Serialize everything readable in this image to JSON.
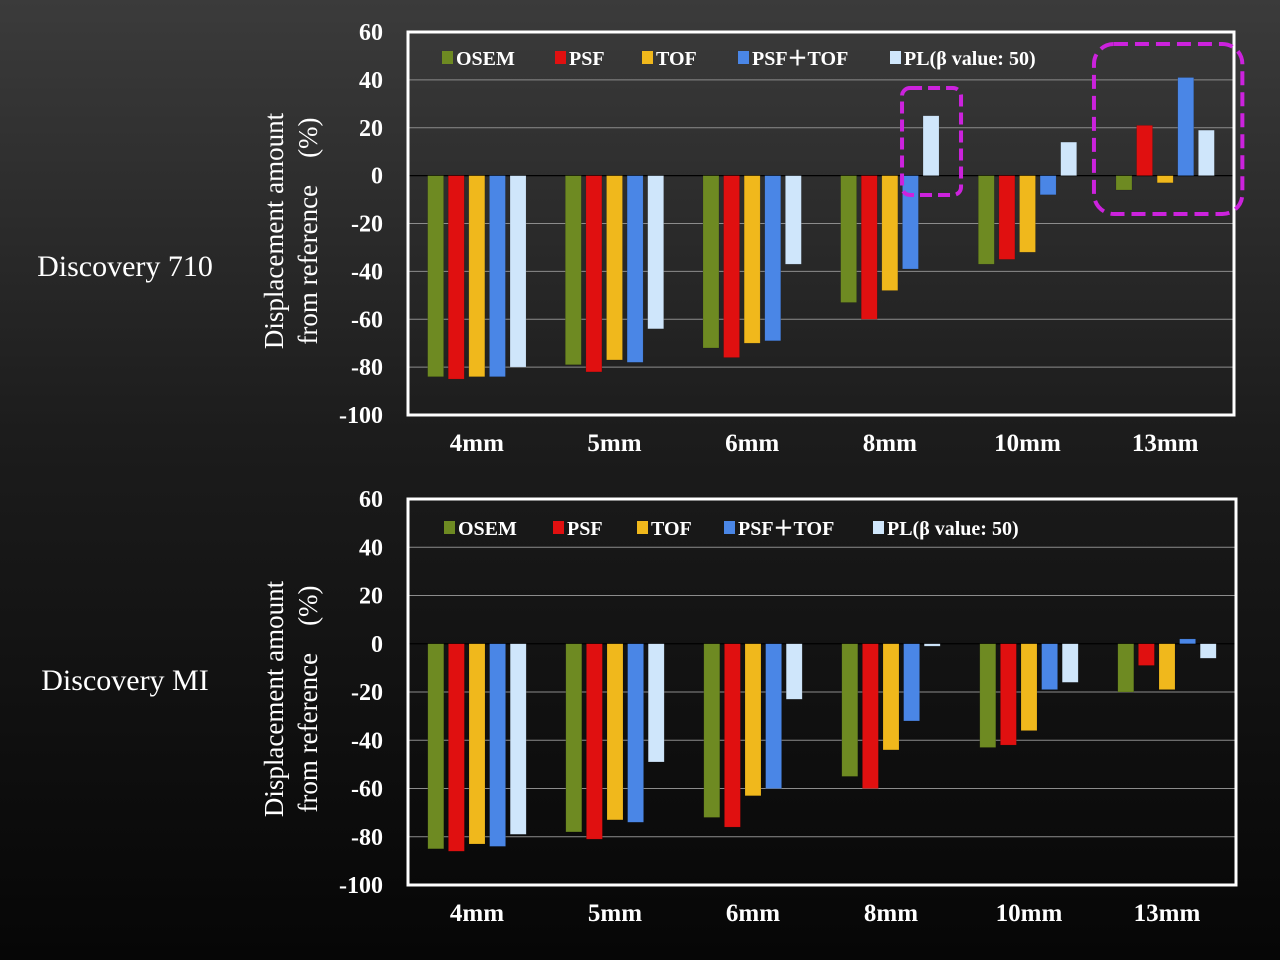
{
  "colors": {
    "OSEM": "#6e8a22",
    "PSF": "#e01010",
    "TOF": "#f0b81c",
    "PSF+TOF": "#4a86e6",
    "PL": "#cfe6fb",
    "highlight": "#cc22dd"
  },
  "chart_data": [
    {
      "type": "bar",
      "device_label": "Discovery 710",
      "ylabel_line1": "Displacement amount",
      "ylabel_line2": "from reference　(%)",
      "xlabel": "",
      "ylim": [
        -100,
        60
      ],
      "yticks": [
        60,
        40,
        20,
        0,
        -20,
        -40,
        -60,
        -80,
        -100
      ],
      "grid": true,
      "legend": "top",
      "categories": [
        "4mm",
        "5mm",
        "6mm",
        "8mm",
        "10mm",
        "13mm"
      ],
      "series": [
        {
          "name": "OSEM",
          "values": [
            -84,
            -79,
            -72,
            -53,
            -37,
            -6
          ]
        },
        {
          "name": "PSF",
          "values": [
            -85,
            -82,
            -76,
            -60,
            -35,
            21
          ]
        },
        {
          "name": "TOF",
          "values": [
            -84,
            -77,
            -70,
            -48,
            -32,
            -3
          ]
        },
        {
          "name": "PSF＋TOF",
          "values": [
            -84,
            -78,
            -69,
            -39,
            -8,
            41
          ]
        },
        {
          "name": "PL(β value: 50)",
          "values": [
            -80,
            -64,
            -37,
            25,
            14,
            19
          ]
        }
      ],
      "highlights": [
        "8mm: PL(β value: 50)",
        "13mm: all series"
      ]
    },
    {
      "type": "bar",
      "device_label": "Discovery MI",
      "ylabel_line1": "Displacement amount",
      "ylabel_line2": "from reference　(%)",
      "xlabel": "",
      "ylim": [
        -100,
        60
      ],
      "yticks": [
        60,
        40,
        20,
        0,
        -20,
        -40,
        -60,
        -80,
        -100
      ],
      "grid": true,
      "legend": "top",
      "categories": [
        "4mm",
        "5mm",
        "6mm",
        "8mm",
        "10mm",
        "13mm"
      ],
      "series": [
        {
          "name": "OSEM",
          "values": [
            -85,
            -78,
            -72,
            -55,
            -43,
            -20
          ]
        },
        {
          "name": "PSF",
          "values": [
            -86,
            -81,
            -76,
            -60,
            -42,
            -9
          ]
        },
        {
          "name": "TOF",
          "values": [
            -83,
            -73,
            -63,
            -44,
            -36,
            -19
          ]
        },
        {
          "name": "PSF＋TOF",
          "values": [
            -84,
            -74,
            -60,
            -32,
            -19,
            2
          ]
        },
        {
          "name": "PL(β value: 50)",
          "values": [
            -79,
            -49,
            -23,
            -1,
            -16,
            -6
          ]
        }
      ]
    }
  ]
}
